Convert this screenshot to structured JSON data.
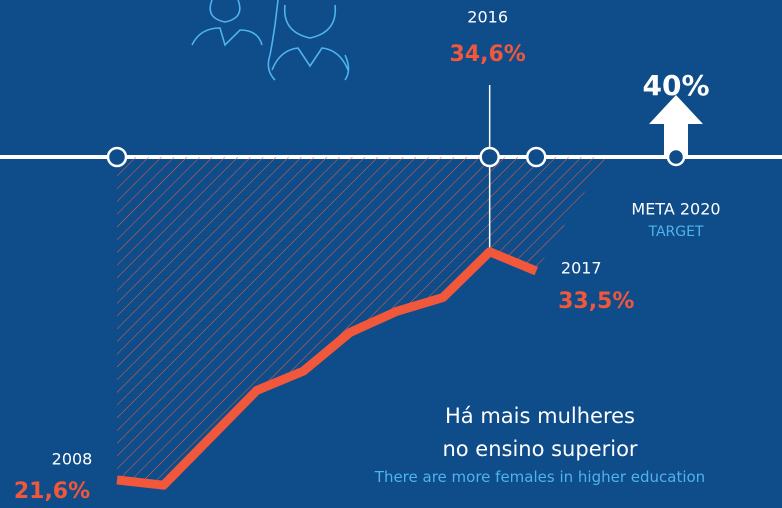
{
  "chart_data": {
    "type": "line",
    "x": [
      2008,
      2009,
      2010,
      2011,
      2012,
      2013,
      2014,
      2015,
      2016,
      2017
    ],
    "values": [
      21.6,
      21.3,
      24.0,
      26.7,
      27.8,
      30.0,
      31.2,
      32.0,
      34.6,
      33.5
    ],
    "value_labels": [
      "21,6%",
      null,
      null,
      null,
      null,
      null,
      null,
      null,
      "34,6%",
      "33,5%"
    ],
    "color": "#f0573b",
    "xlim": [
      2008,
      2020
    ],
    "ylim": [
      20,
      40
    ],
    "target": {
      "x": 2020,
      "value": 40,
      "label": "40%",
      "caption": "META 2020",
      "caption_en": "TARGET"
    },
    "annotation": {
      "title_lines": [
        "Há mais mulheres",
        "no ensino superior"
      ],
      "translation": "There are more females in higher education"
    }
  }
}
